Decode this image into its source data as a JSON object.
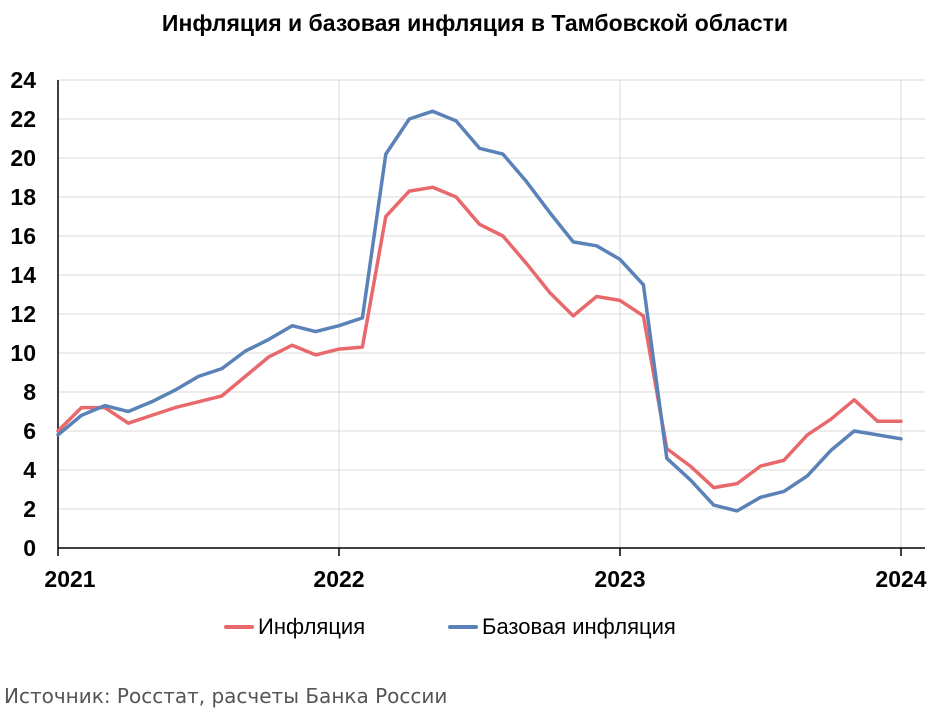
{
  "chart_data": {
    "type": "line",
    "title": "Инфляция и базовая инфляция в Тамбовской области",
    "xlabel": "",
    "ylabel": "",
    "ylim": [
      0,
      24
    ],
    "yticks": [
      "0",
      "2",
      "4",
      "6",
      "8",
      "10",
      "12",
      "14",
      "16",
      "18",
      "20",
      "22",
      "24"
    ],
    "xlim": [
      "2021-01",
      "2024-01"
    ],
    "xticks": [
      "2021",
      "2022",
      "2023",
      "2024"
    ],
    "grid": true,
    "legend": "bottom",
    "x": [
      "2021-01",
      "2021-02",
      "2021-03",
      "2021-04",
      "2021-05",
      "2021-06",
      "2021-07",
      "2021-08",
      "2021-09",
      "2021-10",
      "2021-11",
      "2021-12",
      "2022-01",
      "2022-02",
      "2022-03",
      "2022-04",
      "2022-05",
      "2022-06",
      "2022-07",
      "2022-08",
      "2022-09",
      "2022-10",
      "2022-11",
      "2022-12",
      "2023-01",
      "2023-02",
      "2023-03",
      "2023-04",
      "2023-05",
      "2023-06",
      "2023-07",
      "2023-08",
      "2023-09",
      "2023-10",
      "2023-11",
      "2023-12",
      "2024-01"
    ],
    "series": [
      {
        "name": "Инфляция",
        "color": "#e8696c",
        "values": [
          6.0,
          7.2,
          7.2,
          6.4,
          6.8,
          7.2,
          7.5,
          7.8,
          8.8,
          9.8,
          10.4,
          9.9,
          10.2,
          10.3,
          17.0,
          18.3,
          18.5,
          18.0,
          16.6,
          16.0,
          14.6,
          13.1,
          11.9,
          12.9,
          12.7,
          11.9,
          5.1,
          4.2,
          3.1,
          3.3,
          4.2,
          4.5,
          5.8,
          6.6,
          7.6,
          6.5,
          6.5
        ]
      },
      {
        "name": "Базовая инфляция",
        "color": "#5a82b8",
        "values": [
          5.8,
          6.8,
          7.3,
          7.0,
          7.5,
          8.1,
          8.8,
          9.2,
          10.1,
          10.7,
          11.4,
          11.1,
          11.4,
          11.8,
          20.2,
          22.0,
          22.4,
          21.9,
          20.5,
          20.2,
          18.8,
          17.2,
          15.7,
          15.5,
          14.8,
          13.5,
          4.6,
          3.5,
          2.2,
          1.9,
          2.6,
          2.9,
          3.7,
          5.0,
          6.0,
          5.8,
          5.6
        ]
      }
    ]
  },
  "source": "Источник: Росстат, расчеты Банка России"
}
